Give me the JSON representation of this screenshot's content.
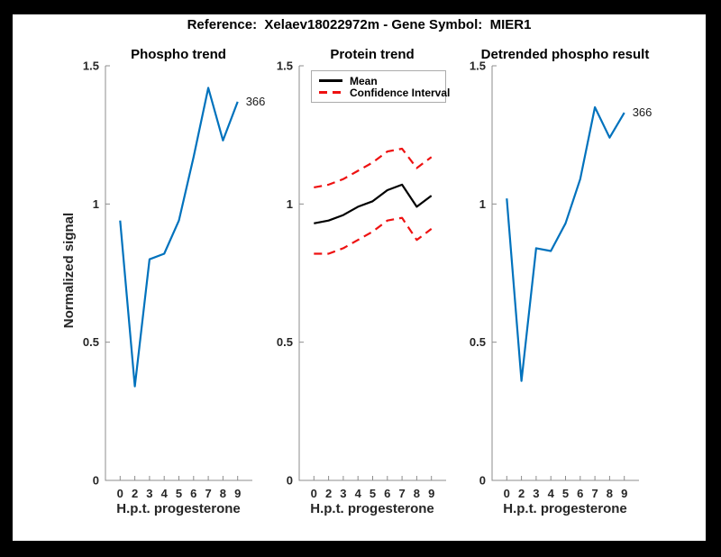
{
  "figure_title": "Reference:  Xelaev18022972m - Gene Symbol:  MIER1",
  "colors": {
    "axis": "#8c8c8c",
    "tick_text": "#262626",
    "line_blue": "#0072bd",
    "ci_red": "#ee1111",
    "mean_black": "#000000"
  },
  "chart_data": [
    {
      "id": "phospho-trend",
      "type": "line",
      "title": "Phospho trend",
      "xlabel": "H.p.t. progesterone",
      "ylabel": "Normalized signal",
      "x_tick_labels": [
        "0",
        "2",
        "3",
        "4",
        "5",
        "6",
        "7",
        "8",
        "9"
      ],
      "y_tick_values": [
        0,
        0.5,
        1,
        1.5
      ],
      "y_tick_labels": [
        "0",
        "0.5",
        "1",
        "1.5"
      ],
      "ylim": [
        0,
        1.5
      ],
      "grid": false,
      "legend": null,
      "end_label": "366",
      "series": [
        {
          "name": "phospho-366",
          "color": "#0072bd",
          "style": "solid",
          "values": [
            0.94,
            0.34,
            0.8,
            0.82,
            0.94,
            1.17,
            1.42,
            1.23,
            1.37
          ]
        }
      ]
    },
    {
      "id": "protein-trend",
      "type": "line",
      "title": "Protein trend",
      "xlabel": "H.p.t. progesterone",
      "ylabel": null,
      "x_tick_labels": [
        "0",
        "2",
        "3",
        "4",
        "5",
        "6",
        "7",
        "8",
        "9"
      ],
      "y_tick_values": [
        0,
        0.5,
        1,
        1.5
      ],
      "y_tick_labels": [
        "0",
        "0.5",
        "1",
        "1.5"
      ],
      "ylim": [
        0,
        1.5
      ],
      "grid": false,
      "legend": [
        {
          "label": "Mean",
          "color": "#000000",
          "style": "solid"
        },
        {
          "label": "Confidence Interval",
          "color": "#ee1111",
          "style": "dashed"
        }
      ],
      "end_label": null,
      "series": [
        {
          "name": "mean",
          "color": "#000000",
          "style": "solid",
          "values": [
            0.93,
            0.94,
            0.96,
            0.99,
            1.01,
            1.05,
            1.07,
            0.99,
            1.03
          ]
        },
        {
          "name": "ci-upper",
          "color": "#ee1111",
          "style": "dashed",
          "values": [
            1.06,
            1.07,
            1.09,
            1.12,
            1.15,
            1.19,
            1.2,
            1.13,
            1.17
          ]
        },
        {
          "name": "ci-lower",
          "color": "#ee1111",
          "style": "dashed",
          "values": [
            0.82,
            0.82,
            0.84,
            0.87,
            0.9,
            0.94,
            0.95,
            0.87,
            0.91
          ]
        }
      ]
    },
    {
      "id": "detrended-phospho",
      "type": "line",
      "title": "Detrended phospho result",
      "xlabel": "H.p.t. progesterone",
      "ylabel": null,
      "x_tick_labels": [
        "0",
        "2",
        "3",
        "4",
        "5",
        "6",
        "7",
        "8",
        "9"
      ],
      "y_tick_values": [
        0,
        0.5,
        1,
        1.5
      ],
      "y_tick_labels": [
        "0",
        "0.5",
        "1",
        "1.5"
      ],
      "ylim": [
        0,
        1.5
      ],
      "grid": false,
      "legend": null,
      "end_label": "366",
      "series": [
        {
          "name": "detrended-366",
          "color": "#0072bd",
          "style": "solid",
          "values": [
            1.02,
            0.36,
            0.84,
            0.83,
            0.93,
            1.09,
            1.35,
            1.24,
            1.33
          ]
        }
      ]
    }
  ]
}
